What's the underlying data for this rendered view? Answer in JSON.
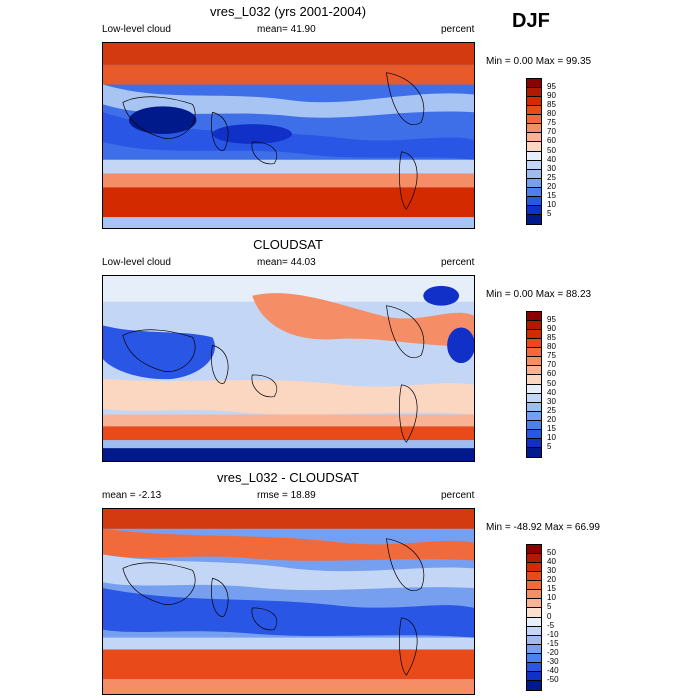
{
  "season": "DJF",
  "panels": [
    {
      "title": "vres_L032 (yrs 2001-2004)",
      "left_label": "Low-level cloud",
      "center_label": "mean=  41.90",
      "right_label": "percent",
      "minmax": "Min =   0.00 Max =  99.35",
      "colorbar": {
        "labels": [
          "95",
          "90",
          "85",
          "80",
          "75",
          "70",
          "60",
          "50",
          "40",
          "30",
          "25",
          "20",
          "15",
          "10",
          "5"
        ],
        "colors": [
          "#8b0000",
          "#b21a00",
          "#d42a00",
          "#e84a1a",
          "#f06a3c",
          "#f58e66",
          "#f9b394",
          "#fbd6c0",
          "#e6eefa",
          "#c4d6f5",
          "#9ebcf0",
          "#779ff0",
          "#4f7ef0",
          "#2a56e6",
          "#1030c8",
          "#001a8c"
        ]
      }
    },
    {
      "title": "CLOUDSAT",
      "left_label": "Low-level cloud",
      "center_label": "mean=  44.03",
      "right_label": "percent",
      "minmax": "Min =   0.00 Max =  88.23",
      "colorbar": {
        "labels": [
          "95",
          "90",
          "85",
          "80",
          "75",
          "70",
          "60",
          "50",
          "40",
          "30",
          "25",
          "20",
          "15",
          "10",
          "5"
        ],
        "colors": [
          "#8b0000",
          "#b21a00",
          "#d42a00",
          "#e84a1a",
          "#f06a3c",
          "#f58e66",
          "#f9b394",
          "#fbd6c0",
          "#e6eefa",
          "#c4d6f5",
          "#9ebcf0",
          "#779ff0",
          "#4f7ef0",
          "#2a56e6",
          "#1030c8",
          "#001a8c"
        ]
      }
    },
    {
      "title": "vres_L032 - CLOUDSAT",
      "left_label": "mean =  -2.13",
      "center_label": "rmse =  18.89",
      "right_label": "percent",
      "minmax": "Min = -48.92 Max =  66.99",
      "colorbar": {
        "labels": [
          "50",
          "40",
          "30",
          "20",
          "15",
          "10",
          "5",
          "0",
          "-5",
          "-10",
          "-15",
          "-20",
          "-30",
          "-40",
          "-50"
        ],
        "colors": [
          "#8b0000",
          "#b21a00",
          "#d42a00",
          "#e84a1a",
          "#f06a3c",
          "#f58e66",
          "#f9b394",
          "#fbe0d0",
          "#e6eefa",
          "#c4d6f5",
          "#9ebcf0",
          "#779ff0",
          "#4f7ef0",
          "#2a56e6",
          "#1030c8",
          "#001a8c"
        ]
      }
    }
  ]
}
